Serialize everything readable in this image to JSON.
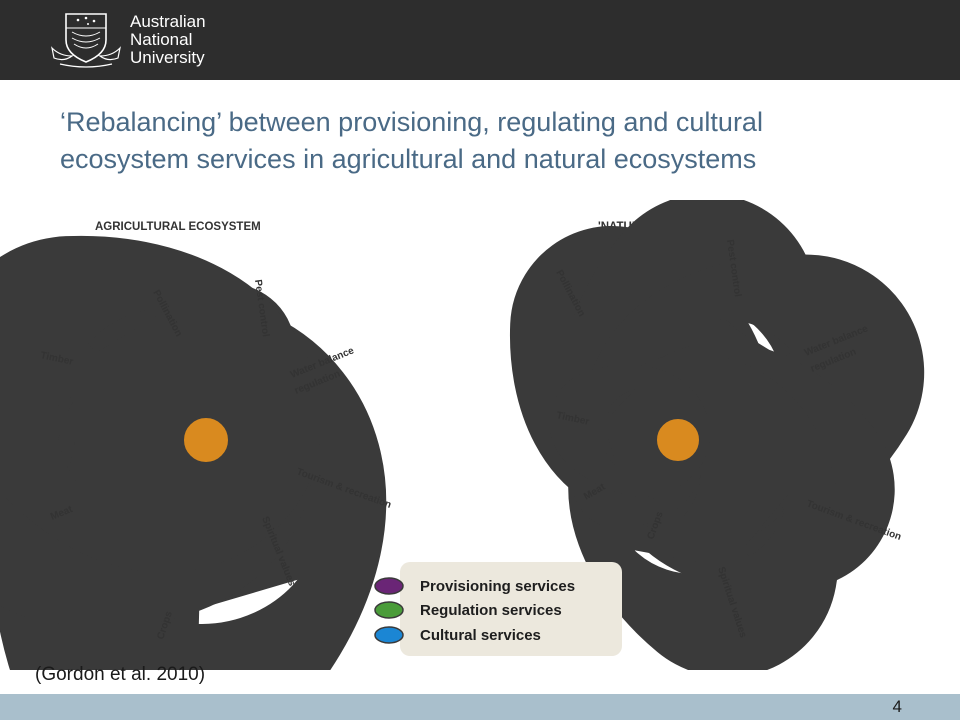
{
  "header": {
    "logo_lines": [
      "Australian",
      "National",
      "University"
    ],
    "background": "#2d2d2d"
  },
  "slide": {
    "title_lines": [
      "‘Rebalancing’ between provisioning, regulating and cultural",
      "ecosystem services in agricultural and natural ecosystems"
    ],
    "citation": "(Gordon et al. 2010)",
    "page_number": "4",
    "title_color": "#4a6a86"
  },
  "diagram": {
    "colors": {
      "provisioning": "#6a2576",
      "regulation": "#4a9c3a",
      "cultural": "#1b86d4",
      "center": "#d98a1f"
    },
    "agricultural": {
      "title": "AGRICULTURAL ECOSYSTEM",
      "labels": {
        "timber": "Timber",
        "pollination": "Pollination",
        "pest_control": "Pest control",
        "water_balance_1": "Water balance",
        "water_balance_2": "regulation",
        "tourism": "Tourism & recreation",
        "spiritual": "Spiritual values",
        "crops": "Crops",
        "meat": "Meat"
      }
    },
    "natural": {
      "title": "'NATURAL' ECOSYSTEM",
      "labels": {
        "pollination": "Pollination",
        "pest_control": "Pest control",
        "water_balance_1": "Water balance",
        "water_balance_2": "regulation",
        "timber": "Timber",
        "meat": "Meat",
        "crops": "Crops",
        "tourism": "Tourism & recreation",
        "spiritual": "Spiritual values"
      }
    },
    "legend": [
      "Provisioning services",
      "Regulation services",
      "Cultural services"
    ]
  }
}
